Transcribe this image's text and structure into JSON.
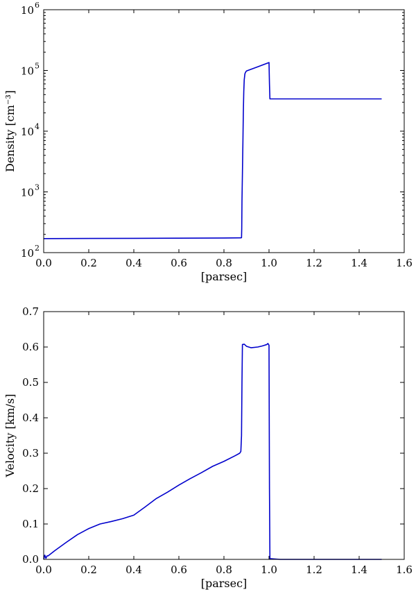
{
  "chart_data": [
    {
      "type": "line",
      "title": "",
      "xlabel": "[parsec]",
      "ylabel": "Density [cm⁻³]",
      "yscale": "log",
      "xlim": [
        0.0,
        1.6
      ],
      "ylim": [
        100,
        1000000
      ],
      "xticks": [
        "0.0",
        "0.2",
        "0.4",
        "0.6",
        "0.8",
        "1.0",
        "1.2",
        "1.4",
        "1.6"
      ],
      "yticks": [
        {
          "value": 100,
          "base": "10",
          "exp": "2"
        },
        {
          "value": 1000,
          "base": "10",
          "exp": "3"
        },
        {
          "value": 10000,
          "base": "10",
          "exp": "4"
        },
        {
          "value": 100000,
          "base": "10",
          "exp": "5"
        },
        {
          "value": 1000000,
          "base": "10",
          "exp": "6"
        }
      ],
      "grid": false,
      "color": "#0000cc",
      "series": [
        {
          "x": [
            0.0,
            0.2,
            0.4,
            0.6,
            0.8,
            0.875,
            0.878,
            0.879,
            0.88,
            0.882,
            0.884,
            0.886,
            0.888,
            0.89,
            0.893,
            0.897,
            0.9,
            0.95,
            1.0,
            1.002,
            1.004,
            1.07,
            1.1,
            1.2,
            1.3,
            1.4,
            1.5
          ],
          "y": [
            170,
            171,
            172,
            173,
            174,
            175,
            176,
            250,
            700,
            2000,
            6000,
            20000,
            45000,
            70000,
            88000,
            95000,
            98000,
            115000,
            135000,
            60000,
            34000,
            34000,
            34000,
            34000,
            34000,
            34000,
            34000
          ]
        }
      ]
    },
    {
      "type": "line",
      "title": "",
      "xlabel": "[parsec]",
      "ylabel": "Velocity [km/s]",
      "xlim": [
        0.0,
        1.6
      ],
      "ylim": [
        0.0,
        0.7
      ],
      "xticks": [
        "0.0",
        "0.2",
        "0.4",
        "0.6",
        "0.8",
        "1.0",
        "1.2",
        "1.4",
        "1.6"
      ],
      "yticks": [
        "0.0",
        "0.1",
        "0.2",
        "0.3",
        "0.4",
        "0.5",
        "0.6",
        "0.7"
      ],
      "grid": false,
      "color": "#0000cc",
      "series": [
        {
          "x": [
            0.0,
            0.005,
            0.01,
            0.015,
            0.02,
            0.05,
            0.1,
            0.15,
            0.2,
            0.25,
            0.3,
            0.35,
            0.4,
            0.45,
            0.5,
            0.55,
            0.6,
            0.65,
            0.7,
            0.75,
            0.8,
            0.85,
            0.87,
            0.875,
            0.878,
            0.88,
            0.882,
            0.89,
            0.9,
            0.92,
            0.95,
            0.97,
            0.99,
            0.995,
            1.0,
            1.002,
            1.004,
            1.05,
            1.1,
            1.2,
            1.3,
            1.4,
            1.5
          ],
          "y": [
            0.0,
            0.012,
            0.003,
            0.01,
            0.01,
            0.025,
            0.048,
            0.07,
            0.087,
            0.1,
            0.107,
            0.115,
            0.125,
            0.148,
            0.172,
            0.19,
            0.21,
            0.228,
            0.245,
            0.263,
            0.277,
            0.293,
            0.3,
            0.305,
            0.35,
            0.5,
            0.607,
            0.608,
            0.602,
            0.598,
            0.6,
            0.603,
            0.607,
            0.61,
            0.605,
            0.2,
            0.002,
            0.0,
            0.0,
            0.0,
            0.0,
            0.0,
            0.0
          ]
        }
      ]
    }
  ]
}
